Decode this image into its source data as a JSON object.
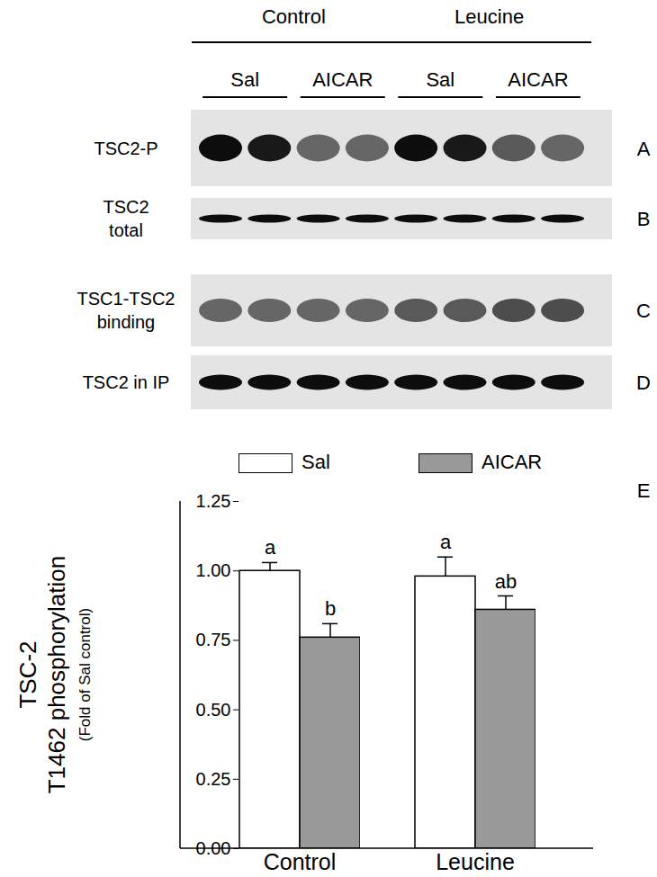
{
  "figure": {
    "groups": [
      "Control",
      "Leucine"
    ],
    "treatments": [
      "Sal",
      "AICAR",
      "Sal",
      "AICAR"
    ],
    "rows": [
      {
        "label": [
          "TSC2-P"
        ],
        "panel": "A"
      },
      {
        "label": [
          "TSC2",
          "total"
        ],
        "panel": "B"
      },
      {
        "label": [
          "TSC1-TSC2",
          "binding"
        ],
        "panel": "C"
      },
      {
        "label": [
          "TSC2 in IP"
        ],
        "panel": "D"
      }
    ]
  },
  "chart_data": {
    "type": "bar",
    "panel_label": "E",
    "y_label": [
      "TSC-2",
      "T1462 phosphorylation",
      "(Fold of Sal control)"
    ],
    "categories": [
      "Control",
      "Leucine"
    ],
    "series": [
      {
        "name": "Sal",
        "color": "#ffffff",
        "values": [
          1.0,
          0.98
        ],
        "errors": [
          0.03,
          0.07
        ],
        "letters": [
          "a",
          "a"
        ]
      },
      {
        "name": "AICAR",
        "color": "#999999",
        "values": [
          0.76,
          0.86
        ],
        "errors": [
          0.05,
          0.05
        ],
        "letters": [
          "b",
          "ab"
        ]
      }
    ],
    "ylim": [
      0,
      1.25
    ],
    "yticks": [
      {
        "value": 0,
        "label": "0.00"
      },
      {
        "value": 0.25,
        "label": "0.25"
      },
      {
        "value": 0.5,
        "label": "0.50"
      },
      {
        "value": 0.75,
        "label": "0.75"
      },
      {
        "value": 1,
        "label": "1.00"
      },
      {
        "value": 1.25,
        "label": "1.25"
      }
    ],
    "legend": "top",
    "grid": false
  }
}
